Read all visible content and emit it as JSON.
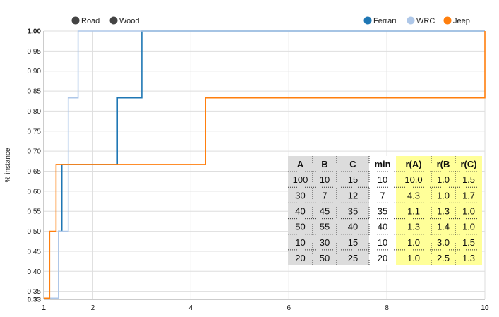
{
  "chart_data": {
    "type": "line",
    "step": true,
    "xlabel": "",
    "ylabel": "% instance",
    "xlim": [
      1,
      10
    ],
    "ylim": [
      0.33,
      1.0
    ],
    "x_ticks": [
      "1",
      "2",
      "4",
      "6",
      "8",
      "10"
    ],
    "x_tick_values": [
      1,
      2,
      4,
      6,
      8,
      10
    ],
    "y_ticks": [
      "0.33",
      "0.35",
      "0.40",
      "0.45",
      "0.50",
      "0.55",
      "0.60",
      "0.65",
      "0.70",
      "0.75",
      "0.80",
      "0.85",
      "0.90",
      "0.95",
      "1.00"
    ],
    "y_tick_values": [
      0.33,
      0.35,
      0.4,
      0.45,
      0.5,
      0.55,
      0.6,
      0.65,
      0.7,
      0.75,
      0.8,
      0.85,
      0.9,
      0.95,
      1.0
    ],
    "grid": true,
    "legend_left": [
      {
        "name": "Road",
        "color": "#444444"
      },
      {
        "name": "Wood",
        "color": "#444444"
      }
    ],
    "legend_position": "top-right",
    "series": [
      {
        "name": "Ferrari",
        "color": "#1f77b4",
        "x": [
          1.0,
          1.3,
          1.3,
          1.37,
          1.37,
          2.5,
          2.5,
          3.0,
          3.0,
          10.0
        ],
        "y": [
          0.333,
          0.333,
          0.5,
          0.5,
          0.667,
          0.667,
          0.833,
          0.833,
          1.0,
          1.0
        ]
      },
      {
        "name": "WRC",
        "color": "#aec7e8",
        "x": [
          1.0,
          1.3,
          1.3,
          1.5,
          1.5,
          1.7,
          1.7,
          10.0
        ],
        "y": [
          0.333,
          0.333,
          0.5,
          0.5,
          0.833,
          0.833,
          1.0,
          1.0
        ]
      },
      {
        "name": "Jeep",
        "color": "#ff7f0e",
        "x": [
          1.0,
          1.12,
          1.12,
          1.25,
          1.25,
          4.3,
          4.3,
          10.0,
          10.0
        ],
        "y": [
          0.333,
          0.333,
          0.5,
          0.5,
          0.667,
          0.667,
          0.833,
          0.833,
          1.0
        ]
      }
    ],
    "table": {
      "headers": [
        "A",
        "B",
        "C",
        "min",
        "r(A)",
        "r(B",
        "r(C)"
      ],
      "rows": [
        [
          "100",
          "10",
          "15",
          "10",
          "10.0",
          "1.0",
          "1.5"
        ],
        [
          "30",
          "7",
          "12",
          "7",
          "4.3",
          "1.0",
          "1.7"
        ],
        [
          "40",
          "45",
          "35",
          "35",
          "1.1",
          "1.3",
          "1.0"
        ],
        [
          "50",
          "55",
          "40",
          "40",
          "1.3",
          "1.4",
          "1.0"
        ],
        [
          "10",
          "30",
          "15",
          "10",
          "1.0",
          "3.0",
          "1.5"
        ],
        [
          "20",
          "50",
          "25",
          "20",
          "1.0",
          "2.5",
          "1.3"
        ]
      ],
      "column_colors": [
        "#dcdcdc",
        "#dcdcdc",
        "#dcdcdc",
        "#ffffff",
        "#ffff99",
        "#ffff99",
        "#ffff99"
      ]
    }
  }
}
